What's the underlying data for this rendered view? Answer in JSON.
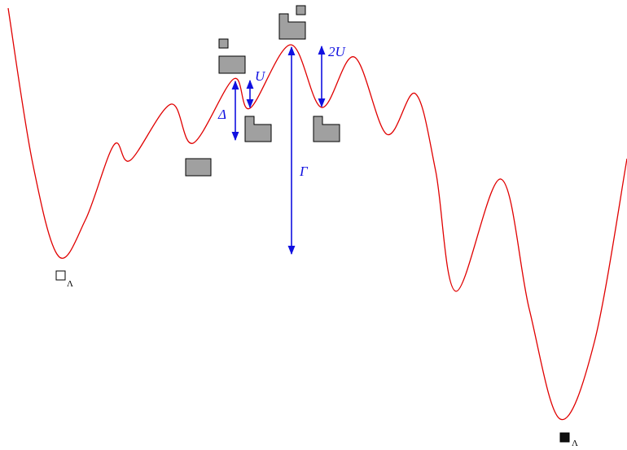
{
  "labels": {
    "u": "U",
    "delta": "Δ",
    "two_u": "2U",
    "gamma": "Γ",
    "start_sub": "Λ",
    "end_sub": "Λ"
  }
}
